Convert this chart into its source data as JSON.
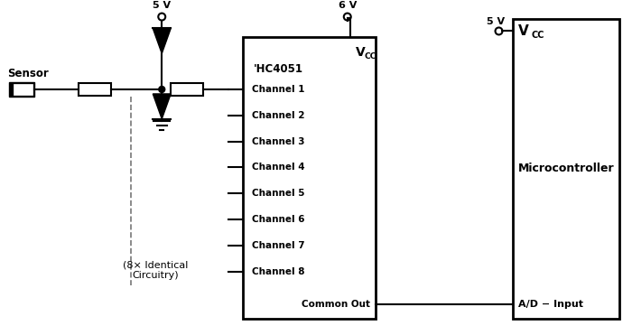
{
  "bg_color": "#ffffff",
  "line_color": "#000000",
  "figsize": [
    7.0,
    3.71
  ],
  "dpi": 100,
  "sensor_label": "Sensor",
  "vcc_label": "V",
  "vcc_sub": "CC",
  "hc_label": "'HC4051",
  "channels": [
    "Channel 1",
    "Channel 2",
    "Channel 3",
    "Channel 4",
    "Channel 5",
    "Channel 6",
    "Channel 7",
    "Channel 8"
  ],
  "common_out": "Common Out",
  "microcontroller": "Microcontroller",
  "ad_input": "A/D − Input",
  "label_5v_1": "5 V",
  "label_6v": "6 V",
  "label_5v_2": "5 V",
  "identical_label": "(8× Identical\nCircuitry)"
}
